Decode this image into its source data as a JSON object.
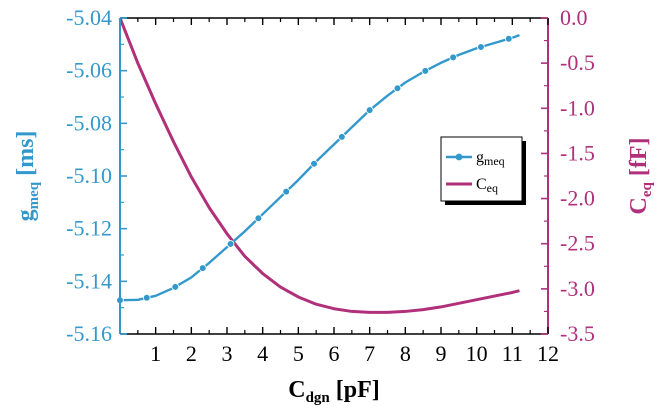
{
  "chart_data": {
    "type": "line",
    "x_label": {
      "main": "C",
      "sub": "dgn",
      "unit": " [pF]"
    },
    "y_left_label": {
      "main": "g",
      "sub": "meq",
      "unit": " [ms]"
    },
    "y_right_label": {
      "main": "C",
      "sub": "eq",
      "unit": " [fF]"
    },
    "xlim": [
      0,
      12
    ],
    "ylim_left": [
      -5.16,
      -5.04
    ],
    "ylim_right": [
      -3.5,
      0.0
    ],
    "x_ticks": [
      1,
      2,
      3,
      4,
      5,
      6,
      7,
      8,
      9,
      10,
      11,
      12
    ],
    "x_tick_labels": [
      "1",
      "2",
      "3",
      "4",
      "5",
      "6",
      "7",
      "8",
      "9",
      "10",
      "11",
      "12"
    ],
    "y_left_ticks": [
      -5.04,
      -5.06,
      -5.08,
      -5.1,
      -5.12,
      -5.14,
      -5.16
    ],
    "y_left_tick_labels": [
      "-5.04",
      "-5.06",
      "-5.08",
      "-5.10",
      "-5.12",
      "-5.14",
      "-5.16"
    ],
    "y_right_ticks": [
      0.0,
      -0.5,
      -1.0,
      -1.5,
      -2.0,
      -2.5,
      -3.0,
      -3.5
    ],
    "y_right_tick_labels": [
      "0.0",
      "-0.5",
      "-1.0",
      "-1.5",
      "-2.0",
      "-2.5",
      "-3.0",
      "-3.5"
    ],
    "legend_position": "right-middle",
    "series": [
      {
        "name": "g",
        "name_sub": "meq",
        "axis": "left",
        "color": "#3399cc",
        "marker": "circle",
        "x": [
          0.0,
          0.5,
          1.0,
          1.5,
          2.0,
          2.5,
          3.0,
          3.5,
          4.0,
          4.5,
          5.0,
          5.5,
          6.0,
          6.5,
          7.0,
          7.5,
          8.0,
          8.5,
          9.0,
          9.5,
          10.0,
          10.5,
          11.0,
          11.2
        ],
        "y": [
          -5.1472,
          -5.147,
          -5.1455,
          -5.1425,
          -5.1385,
          -5.133,
          -5.127,
          -5.121,
          -5.1145,
          -5.108,
          -5.1015,
          -5.0945,
          -5.088,
          -5.0815,
          -5.075,
          -5.0695,
          -5.0645,
          -5.0605,
          -5.057,
          -5.054,
          -5.0515,
          -5.0495,
          -5.0475,
          -5.0465
        ],
        "marker_x": [
          0.0,
          0.75,
          1.55,
          2.32,
          3.1,
          3.88,
          4.66,
          5.44,
          6.22,
          7.0,
          7.78,
          8.56,
          9.34,
          10.12,
          10.9
        ]
      },
      {
        "name": "C",
        "name_sub": "eq",
        "axis": "right",
        "color": "#b0307a",
        "marker": "none",
        "x": [
          0.0,
          0.5,
          1.0,
          1.5,
          2.0,
          2.5,
          3.0,
          3.5,
          4.0,
          4.5,
          5.0,
          5.5,
          6.0,
          6.5,
          7.0,
          7.5,
          8.0,
          8.5,
          9.0,
          9.5,
          10.0,
          10.5,
          11.0,
          11.2
        ],
        "y": [
          0.0,
          -0.5,
          -0.95,
          -1.37,
          -1.76,
          -2.1,
          -2.39,
          -2.64,
          -2.83,
          -2.98,
          -3.09,
          -3.17,
          -3.22,
          -3.25,
          -3.26,
          -3.26,
          -3.25,
          -3.23,
          -3.2,
          -3.16,
          -3.12,
          -3.08,
          -3.04,
          -3.02
        ]
      }
    ]
  }
}
